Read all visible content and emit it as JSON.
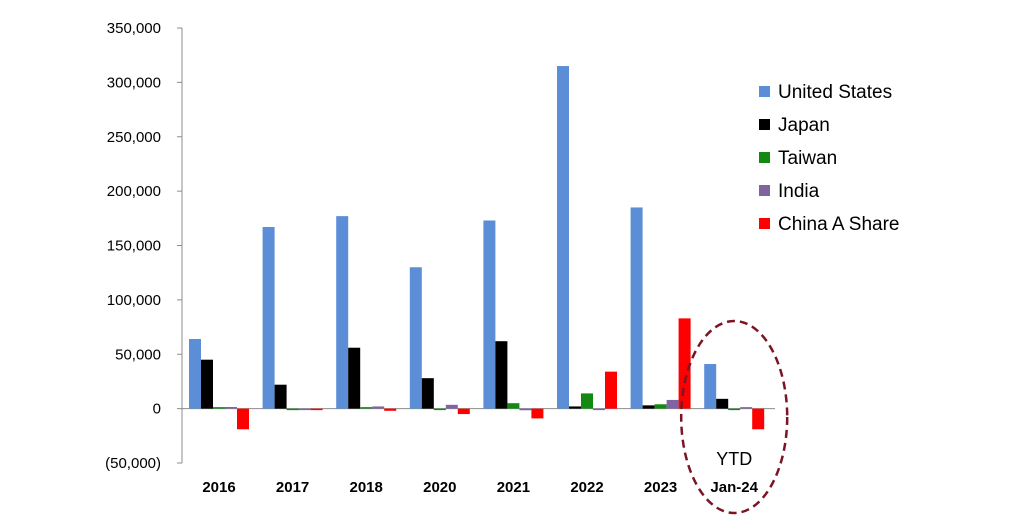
{
  "chart_data": {
    "type": "bar",
    "title": "",
    "xlabel": "",
    "ylabel": "",
    "ylim": [
      -50000,
      350000
    ],
    "y_ticks": [
      350000,
      300000,
      250000,
      200000,
      150000,
      100000,
      50000,
      0,
      -50000
    ],
    "y_tick_labels": [
      "350,000",
      "300,000",
      "250,000",
      "200,000",
      "150,000",
      "100,000",
      "50,000",
      "0",
      "(50,000)"
    ],
    "negative_label_color": "#e00000",
    "categories": [
      "2016",
      "2017",
      "2018",
      "2020",
      "2021",
      "2022",
      "2023",
      "Jan-24"
    ],
    "series": [
      {
        "name": "United States",
        "color": "#5b8ed6",
        "values": [
          64000,
          167000,
          177000,
          130000,
          173000,
          315000,
          185000,
          41000
        ]
      },
      {
        "name": "Japan",
        "color": "#000000",
        "values": [
          45000,
          22000,
          56000,
          28000,
          62000,
          2000,
          3000,
          9000
        ]
      },
      {
        "name": "Taiwan",
        "color": "#128a12",
        "values": [
          0,
          -500,
          0,
          -1000,
          5000,
          14000,
          4000,
          -1000
        ]
      },
      {
        "name": "India",
        "color": "#8064a2",
        "values": [
          1500,
          -500,
          2000,
          3500,
          -1500,
          -500,
          8000,
          1000
        ]
      },
      {
        "name": "China A Share",
        "color": "#ff0000",
        "values": [
          -19000,
          -1000,
          -2000,
          -5000,
          -9000,
          34000,
          83000,
          -19000
        ]
      }
    ],
    "legend_position": "right",
    "grid": false,
    "annotation": {
      "text": "YTD",
      "category": "Jan-24",
      "shape": "dashed-ellipse",
      "color": "#7b1424"
    }
  }
}
